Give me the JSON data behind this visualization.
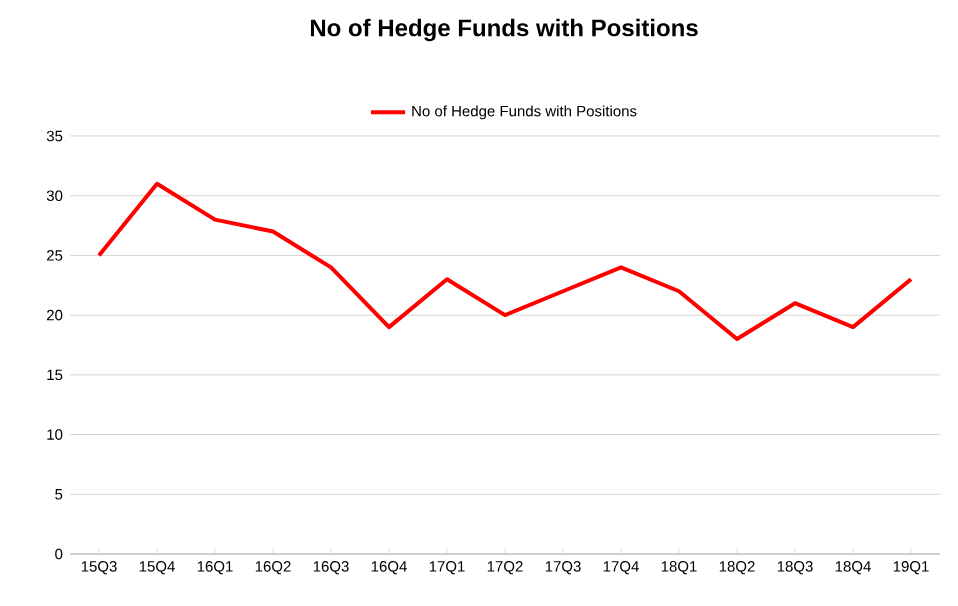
{
  "chart_data": {
    "type": "line",
    "title": "No of Hedge Funds with Positions",
    "categories": [
      "15Q3",
      "15Q4",
      "16Q1",
      "16Q2",
      "16Q3",
      "16Q4",
      "17Q1",
      "17Q2",
      "17Q3",
      "17Q4",
      "18Q1",
      "18Q2",
      "18Q3",
      "18Q4",
      "19Q1"
    ],
    "series": [
      {
        "name": "No of Hedge Funds with Positions",
        "color": "#ff0000",
        "values": [
          25,
          31,
          28,
          27,
          24,
          19,
          23,
          20,
          22,
          24,
          22,
          18,
          21,
          19,
          23
        ]
      }
    ],
    "ylim": [
      0,
      35
    ],
    "yticks": [
      0,
      5,
      10,
      15,
      20,
      25,
      30,
      35
    ],
    "grid": "y",
    "legend": "top",
    "marker": "none",
    "line_style": "solid"
  }
}
